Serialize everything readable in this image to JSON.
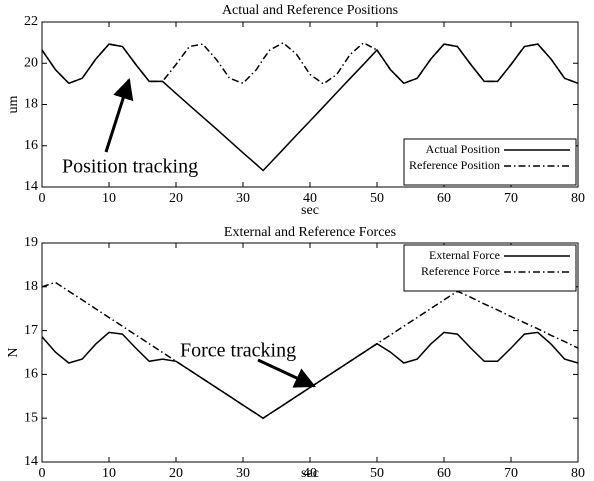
{
  "chart_data": [
    {
      "type": "line",
      "title": "Actual and Reference Positions",
      "x_label": "sec",
      "y_label": "um",
      "x": [
        0,
        2,
        4,
        6,
        8,
        10,
        12,
        14,
        16,
        18,
        20,
        22,
        24,
        26,
        28,
        30,
        32,
        33,
        34,
        36,
        38,
        40,
        42,
        44,
        46,
        48,
        50,
        52,
        54,
        56,
        58,
        60,
        62,
        64,
        66,
        68,
        70,
        72,
        74,
        76,
        78,
        80
      ],
      "series": [
        {
          "name": "Actual Position",
          "color": "#000000",
          "linestyle": "solid",
          "values": [
            20.64,
            19.69,
            19.03,
            19.27,
            20.19,
            20.93,
            20.81,
            19.94,
            19.12,
            19.12,
            18.54,
            17.96,
            17.39,
            16.82,
            16.24,
            15.66,
            15.09,
            14.8,
            15.14,
            15.83,
            16.52,
            17.2,
            17.89,
            18.58,
            19.27,
            19.95,
            20.64,
            19.69,
            19.03,
            19.27,
            20.19,
            20.93,
            20.81,
            19.94,
            19.12,
            19.12,
            19.94,
            20.81,
            20.93,
            20.19,
            19.27,
            19.03
          ]
        },
        {
          "name": "Reference Position",
          "color": "#000000",
          "linestyle": "dashdot",
          "values": [
            20.64,
            19.69,
            19.03,
            19.27,
            20.19,
            20.93,
            20.81,
            19.94,
            19.12,
            19.12,
            19.94,
            20.81,
            20.93,
            20.19,
            19.27,
            19.03,
            19.69,
            20.19,
            20.64,
            20.99,
            20.43,
            19.46,
            19.0,
            19.46,
            20.43,
            20.99,
            20.64,
            19.69,
            19.03,
            19.27,
            20.19,
            20.93,
            20.81,
            19.94,
            19.12,
            19.12,
            19.94,
            20.81,
            20.93,
            20.19,
            19.27,
            19.03
          ]
        }
      ],
      "xlim": [
        0,
        80
      ],
      "xticks": [
        0,
        10,
        20,
        30,
        40,
        50,
        60,
        70,
        80
      ],
      "ylim": [
        14,
        22
      ],
      "yticks": [
        14,
        16,
        18,
        20,
        22
      ],
      "legend": "lower right",
      "annotations": [
        "Position tracking"
      ]
    },
    {
      "type": "line",
      "title": "External and Reference Forces",
      "x_label": "sec",
      "y_label": "N",
      "x": [
        0,
        2,
        4,
        6,
        8,
        10,
        12,
        14,
        16,
        18,
        20,
        22,
        24,
        26,
        28,
        30,
        32,
        33,
        34,
        36,
        38,
        40,
        42,
        44,
        46,
        48,
        50,
        52,
        54,
        56,
        58,
        60,
        62,
        64,
        66,
        68,
        70,
        72,
        74,
        76,
        78,
        80
      ],
      "series": [
        {
          "name": "External Force",
          "color": "#000000",
          "linestyle": "solid",
          "values": [
            16.86,
            16.51,
            16.26,
            16.35,
            16.69,
            16.96,
            16.92,
            16.6,
            16.3,
            16.35,
            16.3,
            16.1,
            15.9,
            15.7,
            15.5,
            15.3,
            15.1,
            15.0,
            15.1,
            15.3,
            15.5,
            15.7,
            15.9,
            16.1,
            16.3,
            16.5,
            16.7,
            16.51,
            16.26,
            16.35,
            16.69,
            16.96,
            16.92,
            16.6,
            16.3,
            16.3,
            16.6,
            16.92,
            16.96,
            16.69,
            16.35,
            16.26
          ]
        },
        {
          "name": "Reference Force",
          "color": "#000000",
          "linestyle": "dashdot",
          "values": [
            18.0,
            18.1,
            17.9,
            17.7,
            17.5,
            17.3,
            17.1,
            16.9,
            16.7,
            16.5,
            16.3,
            16.1,
            15.9,
            15.7,
            15.5,
            15.3,
            15.1,
            15.0,
            15.1,
            15.3,
            15.5,
            15.7,
            15.9,
            16.1,
            16.3,
            16.5,
            16.7,
            16.9,
            17.1,
            17.3,
            17.5,
            17.7,
            17.9,
            17.76,
            17.61,
            17.47,
            17.32,
            17.18,
            17.04,
            16.89,
            16.75,
            16.6
          ]
        }
      ],
      "xlim": [
        0,
        80
      ],
      "xticks": [
        0,
        10,
        20,
        30,
        40,
        50,
        60,
        70,
        80
      ],
      "ylim": [
        14,
        19
      ],
      "yticks": [
        14,
        15,
        16,
        17,
        18,
        19
      ],
      "legend": "upper right",
      "annotations": [
        "Force tracking"
      ]
    }
  ]
}
